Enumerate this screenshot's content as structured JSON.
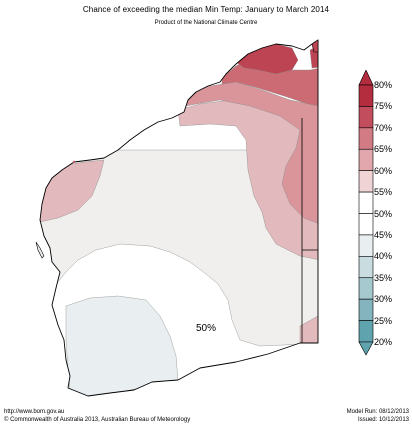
{
  "header": {
    "title": "Chance of exceeding the median Min Temp: January to March 2014",
    "subtitle": "Product of the National Climate Centre"
  },
  "map": {
    "annotation": "50%",
    "zone_colors": {
      "80": "#b32d3e",
      "75": "#c55866",
      "70": "#d98a92",
      "65": "#e6b4b8",
      "50": "#f0efed",
      "45": "#e9eff1"
    }
  },
  "legend": {
    "labels": [
      "80%",
      "75%",
      "70%",
      "65%",
      "60%",
      "55%",
      "50%",
      "45%",
      "40%",
      "35%",
      "30%",
      "25%",
      "20%"
    ],
    "bands": [
      "#b32d3e",
      "#c24d5c",
      "#d27b85",
      "#e2a7ad",
      "#efd3d5",
      "#ffffff",
      "#ffffff",
      "#e9eff1",
      "#c9dde1",
      "#a6c9cf",
      "#84b5be",
      "#5fa3ae"
    ]
  },
  "footer": {
    "url": "http://www.bom.gov.au",
    "copyright": "©  Commonwealth of Australia 2013, Australian Bureau of Meteorology",
    "model_run": "Model Run: 08/12/2013",
    "issued": "Issued: 10/12/2013"
  }
}
